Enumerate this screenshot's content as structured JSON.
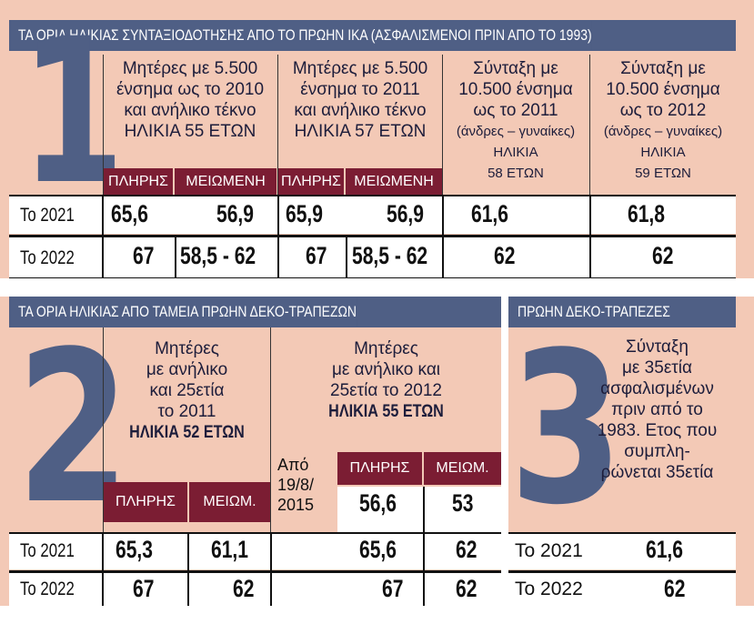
{
  "s1": {
    "title": "ΤΑ ΟΡΙΑ ΗΛΙΚΙΑΣ ΣΥΝΤΑΞΙΟΔΟΤΗΣΗΣ ΑΠΟ ΤΟ ΠΡΩΗΝ ΙΚΑ (ΑΣΦΑΛΙΣΜΕΝΟΙ ΠΡΙΝ ΑΠΟ ΤΟ 1993)",
    "number": "1",
    "col1": [
      "Μητέρες με 5.500",
      "ένσημα ως το 2010",
      "και ανήλικο τέκνο",
      "ΗΛΙΚΙΑ 55 ΕΤΩΝ"
    ],
    "col2": [
      "Μητέρες με 5.500",
      "ένσημα το 2011",
      "και ανήλικο τέκνο",
      "ΗΛΙΚΙΑ 57 ΕΤΩΝ"
    ],
    "col3": [
      "Σύνταξη με",
      "10.500 ένσημα",
      "ως το 2011",
      "(άνδρες – γυναίκες)",
      "ΗΛΙΚΙΑ",
      "58 ΕΤΩΝ"
    ],
    "col4": [
      "Σύνταξη με",
      "10.500 ένσημα",
      "ως το 2012",
      "(άνδρες – γυναίκες)",
      "ΗΛΙΚΙΑ",
      "59 ΕΤΩΝ"
    ],
    "tag_full": "ΠΛΗΡΗΣ",
    "tag_reduced": "ΜΕΙΩΜΕΝΗ",
    "rows": [
      {
        "year": "Το 2021",
        "v": [
          "65,6",
          "56,9",
          "65,9",
          "56,9",
          "61,6",
          "61,8"
        ]
      },
      {
        "year": "Το 2022",
        "v": [
          "67",
          "58,5 - 62",
          "67",
          "58,5 - 62",
          "62",
          "62"
        ]
      }
    ]
  },
  "s2": {
    "title": "ΤΑ ΟΡΙΑ ΗΛΙΚΙΑΣ ΑΠΟ ΤΑΜΕΙΑ ΠΡΩΗΝ ΔΕΚΟ-ΤΡΑΠΕΖΩΝ",
    "number": "2",
    "col1": [
      "Μητέρες",
      "με ανήλικο",
      "και 25ετία",
      "το 2011"
    ],
    "col1_bold": "ΗΛΙΚΙΑ 52 ΕΤΩΝ",
    "col2": [
      "Μητέρες",
      "με ανήλικο και",
      "25ετία το 2012"
    ],
    "col2_bold": "ΗΛΙΚΙΑ 55 ΕΤΩΝ",
    "tag_full": "ΠΛΗΡΗΣ",
    "tag_reduced": "ΜΕΙΩΜ.",
    "from_label": [
      "Από",
      "19/8/",
      "2015"
    ],
    "from_values": [
      "56,6",
      "53"
    ],
    "rows": [
      {
        "year": "Το 2021",
        "v": [
          "65,3",
          "61,1",
          "65,6",
          "62"
        ]
      },
      {
        "year": "Το 2022",
        "v": [
          "67",
          "62",
          "67",
          "62"
        ]
      }
    ]
  },
  "s3": {
    "title": "ΠΡΩΗΝ ΔΕΚΟ-ΤΡΑΠΕΖΕΣ",
    "number": "3",
    "desc": [
      "Σύνταξη",
      "με 35ετία",
      "ασφαλισμένων",
      "πριν από το",
      "1983. Ετος που",
      "συμπλη-",
      "ρώνεται 35ετία"
    ],
    "rows": [
      {
        "year": "Το 2021",
        "v": "61,6"
      },
      {
        "year": "Το 2022",
        "v": "62"
      }
    ]
  }
}
